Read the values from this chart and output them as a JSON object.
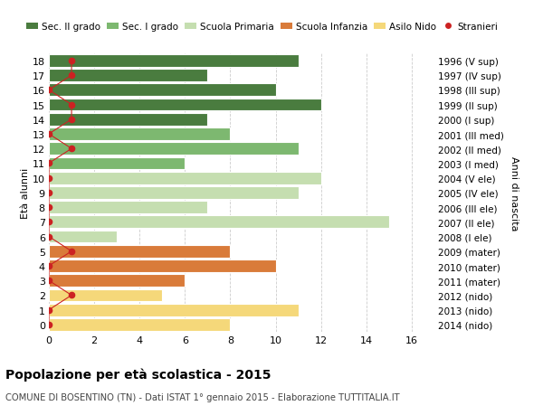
{
  "ages": [
    18,
    17,
    16,
    15,
    14,
    13,
    12,
    11,
    10,
    9,
    8,
    7,
    6,
    5,
    4,
    3,
    2,
    1,
    0
  ],
  "anni_nascita": [
    "1996 (V sup)",
    "1997 (IV sup)",
    "1998 (III sup)",
    "1999 (II sup)",
    "2000 (I sup)",
    "2001 (III med)",
    "2002 (II med)",
    "2003 (I med)",
    "2004 (V ele)",
    "2005 (IV ele)",
    "2006 (III ele)",
    "2007 (II ele)",
    "2008 (I ele)",
    "2009 (mater)",
    "2010 (mater)",
    "2011 (mater)",
    "2012 (nido)",
    "2013 (nido)",
    "2014 (nido)"
  ],
  "bar_values": [
    11,
    7,
    10,
    12,
    7,
    8,
    11,
    6,
    12,
    11,
    7,
    15,
    3,
    8,
    10,
    6,
    5,
    11,
    8
  ],
  "bar_colors": [
    "#4a7c3f",
    "#4a7c3f",
    "#4a7c3f",
    "#4a7c3f",
    "#4a7c3f",
    "#7db870",
    "#7db870",
    "#7db870",
    "#c5deb0",
    "#c5deb0",
    "#c5deb0",
    "#c5deb0",
    "#c5deb0",
    "#d97b3a",
    "#d97b3a",
    "#d97b3a",
    "#f5d87a",
    "#f5d87a",
    "#f5d87a"
  ],
  "stranieri_values": [
    1,
    1,
    0,
    1,
    1,
    0,
    1,
    0,
    0,
    0,
    0,
    0,
    0,
    1,
    0,
    0,
    1,
    0,
    0
  ],
  "legend_labels": [
    "Sec. II grado",
    "Sec. I grado",
    "Scuola Primaria",
    "Scuola Infanzia",
    "Asilo Nido",
    "Stranieri"
  ],
  "legend_colors": [
    "#4a7c3f",
    "#7db870",
    "#c5deb0",
    "#d97b3a",
    "#f5d87a",
    "#cc2222"
  ],
  "title_bold": "Popolazione per età scolastica - 2015",
  "subtitle": "COMUNE DI BOSENTINO (TN) - Dati ISTAT 1° gennaio 2015 - Elaborazione TUTTITALIA.IT",
  "ylabel_left": "Età alunni",
  "ylabel_right": "Anni di nascita",
  "xlim": [
    0,
    17
  ],
  "xticks": [
    0,
    2,
    4,
    6,
    8,
    10,
    12,
    14,
    16
  ],
  "bg_color": "#ffffff",
  "grid_color": "#cccccc"
}
